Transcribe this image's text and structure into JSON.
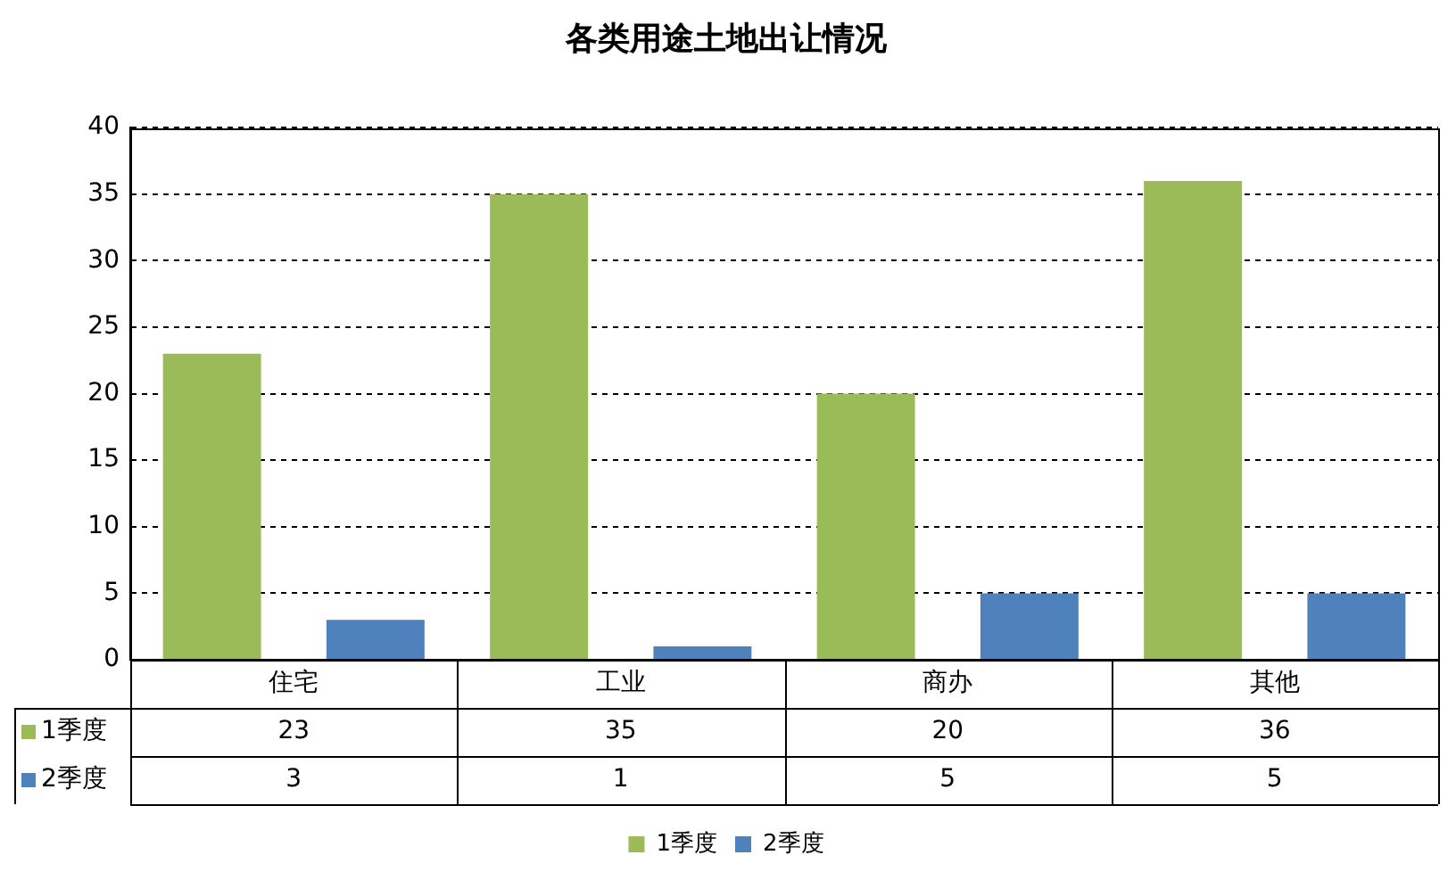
{
  "chart_data": {
    "type": "bar",
    "title": "各类用途土地出让情况",
    "categories": [
      "住宅",
      "工业",
      "商办",
      "其他"
    ],
    "series": [
      {
        "name": "1季度",
        "color": "#9bbb59",
        "values": [
          23,
          35,
          20,
          36
        ]
      },
      {
        "name": "2季度",
        "color": "#4f81bd",
        "values": [
          3,
          1,
          5,
          5
        ]
      }
    ],
    "ylim": [
      0,
      40
    ],
    "yticks": [
      0,
      5,
      10,
      15,
      20,
      25,
      30,
      35,
      40
    ],
    "grid": "y",
    "line_style": "dashed",
    "legend": "bottom",
    "data_labels": true
  }
}
